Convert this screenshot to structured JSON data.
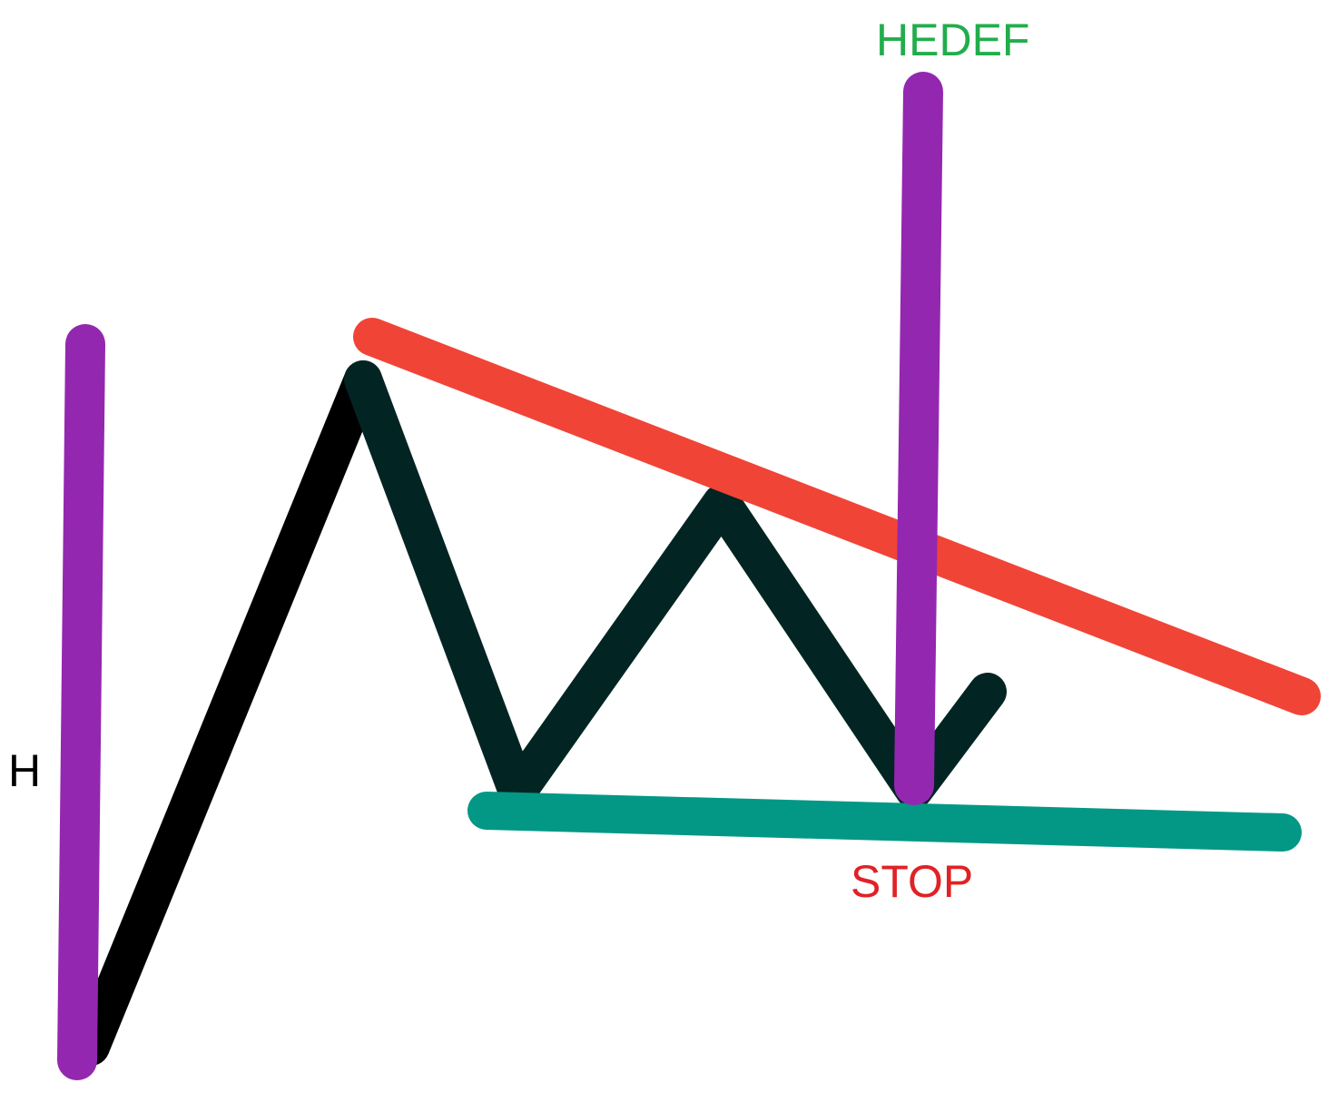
{
  "labels": {
    "height": "H",
    "target": "HEDEF",
    "stop": "STOP"
  },
  "colors": {
    "background": "#ffffff",
    "height_measure": "#9427b0",
    "target_measure": "#9427b0",
    "resistance_line": "#f04437",
    "support_line": "#029885",
    "impulse_leg": "#000000",
    "wedge_legs": "#022523",
    "height_label": "#000000",
    "target_label": "#22ad4c",
    "stop_label": "#e02226"
  }
}
